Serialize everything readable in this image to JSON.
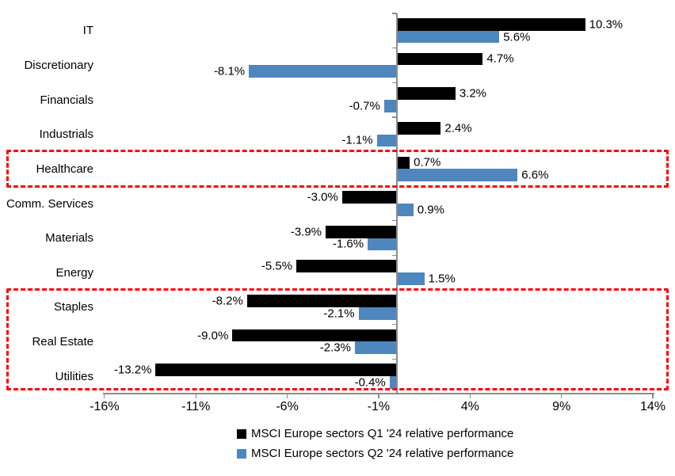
{
  "chart_data": {
    "type": "bar",
    "orientation": "horizontal",
    "title": "",
    "categories": [
      "IT",
      "Discretionary",
      "Financials",
      "Industrials",
      "Healthcare",
      "Comm. Services",
      "Materials",
      "Energy",
      "Staples",
      "Real Estate",
      "Utilities"
    ],
    "series": [
      {
        "name": "MSCI Europe sectors Q1 '24 relative performance",
        "color": "#000000",
        "values": [
          10.3,
          4.7,
          3.2,
          2.4,
          0.7,
          -3.0,
          -3.9,
          -5.5,
          -8.2,
          -9.0,
          -13.2
        ]
      },
      {
        "name": "MSCI Europe sectors Q2 '24 relative performance",
        "color": "#4E86BE",
        "values": [
          5.6,
          -8.1,
          -0.7,
          -1.1,
          6.6,
          0.9,
          -1.6,
          1.5,
          -2.1,
          -2.3,
          -0.4
        ]
      }
    ],
    "value_label_suffix": "%",
    "value_label_decimals": 1,
    "x_tick_labels": [
      "-16%",
      "-11%",
      "-6%",
      "-1%",
      "4%",
      "9%",
      "14%"
    ],
    "xlim": [
      -16,
      14
    ],
    "grid": false,
    "legend_position": "bottom",
    "axis_color": "#8C8C8C",
    "highlight": {
      "style": "red-dashed-box",
      "color": "#FE0202",
      "groups": [
        [
          "Healthcare"
        ],
        [
          "Staples",
          "Real Estate",
          "Utilities"
        ]
      ]
    }
  }
}
